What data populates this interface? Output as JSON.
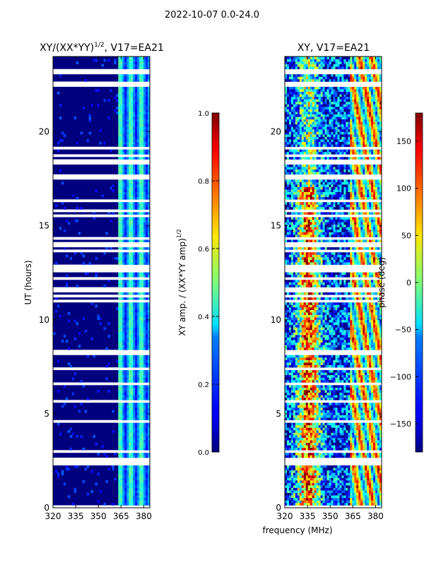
{
  "suptitle": "2022-10-07 0.0-24.0",
  "chart_data": [
    {
      "type": "heatmap",
      "title": "XY/(XX*YY)^1/2, V17=EA21",
      "title_main": "XY/(XX*YY)",
      "title_sup": "1/2",
      "title_tail": ", V17=EA21",
      "xlabel": "frequency (MHz)",
      "ylabel": "UT (hours)",
      "xlim": [
        320,
        384
      ],
      "ylim": [
        0,
        24
      ],
      "xticks": [
        320,
        335,
        350,
        365,
        380
      ],
      "yticks": [
        0,
        5,
        10,
        15,
        20
      ],
      "colorbar": {
        "label": "XY amp. / (XX*YY amp)^1/2",
        "label_main": "XY amp. / (XX*YY amp)",
        "label_sup": "1/2",
        "range": [
          0.0,
          1.0
        ],
        "ticks": [
          "0.0",
          "0.2",
          "0.4",
          "0.6",
          "0.8",
          "1.0"
        ],
        "colormap": "jet"
      },
      "values_summary": "mostly dark blue (~0.0-0.1) below 362 MHz; light blue/cyan/green (~0.2-0.45) stripes between 362 and 382 MHz"
    },
    {
      "type": "heatmap",
      "title": "XY, V17=EA21",
      "xlabel": "frequency (MHz)",
      "ylabel": "",
      "xlim": [
        320,
        384
      ],
      "ylim": [
        0,
        24
      ],
      "xticks": [
        320,
        335,
        350,
        365,
        380
      ],
      "yticks": [
        0,
        5,
        10,
        15,
        20
      ],
      "colorbar": {
        "label": "phase (deg)",
        "range": [
          -180,
          180
        ],
        "ticks": [
          "150",
          "100",
          "50",
          "0",
          "−50",
          "−100",
          "−150"
        ],
        "colormap": "jet"
      },
      "values_summary": "noisy phase: red/orange (~100-180) near 330-345 MHz, blue (~-150) near 320-325 and 345-360 MHz, structured gradients above 362 MHz"
    }
  ],
  "colors": {
    "jet_low": "#00007f",
    "jet_high": "#7f0000"
  }
}
